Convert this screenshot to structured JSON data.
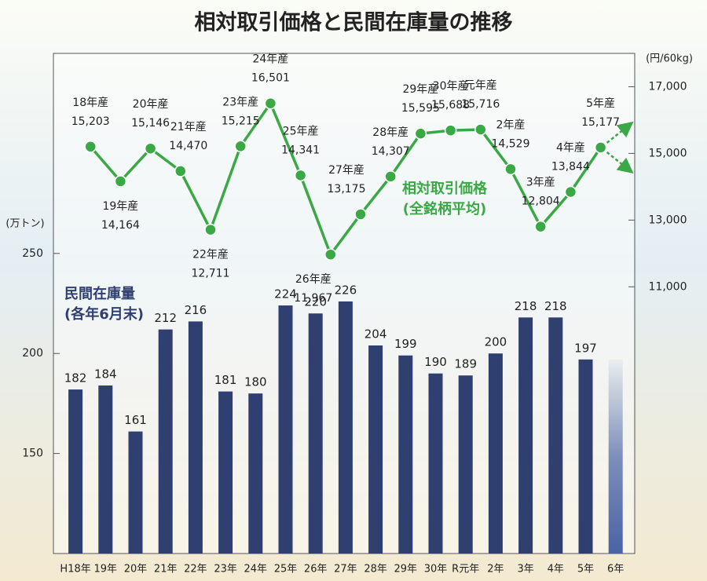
{
  "chart_data": {
    "type": "bar_line",
    "title": "相対取引価格と民間在庫量の推移",
    "y_label": "(万トン)",
    "y2_label": "(円/60kg)",
    "categories": [
      "H18年",
      "19年",
      "20年",
      "21年",
      "22年",
      "23年",
      "24年",
      "25年",
      "26年",
      "27年",
      "28年",
      "29年",
      "30年",
      "R元年",
      "2年",
      "3年",
      "4年",
      "5年",
      "6年"
    ],
    "ylim": [
      100,
      350
    ],
    "yticks": [
      150,
      200,
      250
    ],
    "y2lim": [
      3000,
      18000
    ],
    "y2ticks": [
      {
        "value": 11000,
        "label": "11,000"
      },
      {
        "value": 13000,
        "label": "13,000"
      },
      {
        "value": 15000,
        "label": "15,000"
      },
      {
        "value": 17000,
        "label": "17,000"
      }
    ],
    "series": [
      {
        "name": "民間在庫量\n(各年6月末)",
        "type": "bar",
        "color": "#2f3f6f",
        "values": [
          182,
          184,
          161,
          212,
          216,
          181,
          180,
          224,
          220,
          226,
          204,
          199,
          190,
          189,
          200,
          218,
          218,
          197,
          197
        ],
        "value_labels": [
          "182",
          "184",
          "161",
          "212",
          "216",
          "181",
          "180",
          "224",
          "220",
          "226",
          "204",
          "199",
          "190",
          "189",
          "200",
          "218",
          "218",
          "197",
          null
        ]
      },
      {
        "name": "相対取引価格\n(全銘柄平均)",
        "type": "line",
        "axis": "y2",
        "color": "#3aa845",
        "values": [
          15203,
          14164,
          15146,
          14470,
          12711,
          15215,
          16501,
          14341,
          11967,
          13175,
          14307,
          15595,
          15688,
          15716,
          14529,
          12804,
          13844,
          15177,
          null
        ],
        "point_labels": [
          "18年産",
          "19年産",
          "20年産",
          "21年産",
          "22年産",
          "23年産",
          "24年産",
          "25年産",
          "26年産",
          "27年産",
          "28年産",
          "29年産",
          "30年産",
          "元年産",
          "2年産",
          "3年産",
          "4年産",
          "5年産",
          null
        ],
        "value_labels": [
          "15,203",
          "14,164",
          "15,146",
          "14,470",
          "12,711",
          "15,215",
          "16,501",
          "14,341",
          "11,967",
          "13,175",
          "14,307",
          "15,595",
          "15,688",
          "15,716",
          "14,529",
          "12,804",
          "13,844",
          "15,177",
          null
        ]
      }
    ]
  }
}
